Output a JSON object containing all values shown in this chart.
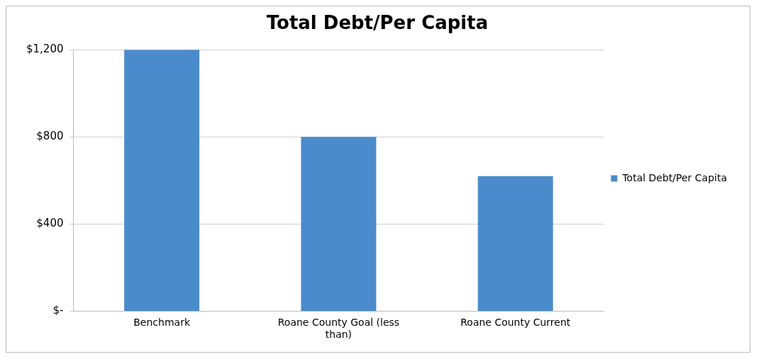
{
  "chart_data": {
    "type": "bar",
    "title": "Total Debt/Per Capita",
    "categories": [
      "Benchmark",
      "Roane County Goal (less than)",
      "Roane County Current"
    ],
    "series": [
      {
        "name": "Total Debt/Per Capita",
        "color": "#4a8bcb",
        "values": [
          1200,
          800,
          620
        ]
      }
    ],
    "ylim": [
      0,
      1200
    ],
    "yticks": [
      {
        "value": 0,
        "label": "$-"
      },
      {
        "value": 400,
        "label": "$400"
      },
      {
        "value": 800,
        "label": "$800"
      },
      {
        "value": 1200,
        "label": "$1,200"
      }
    ],
    "grid": "y",
    "legend": "right"
  }
}
